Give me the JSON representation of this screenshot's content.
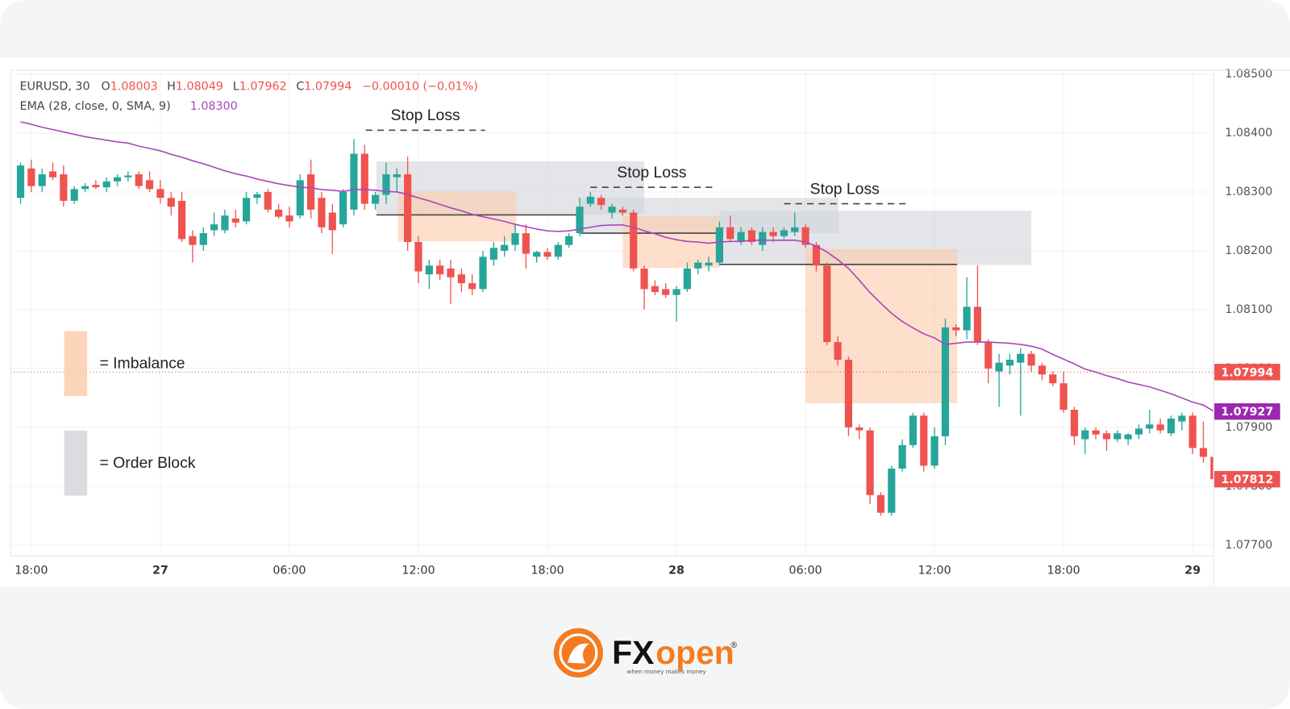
{
  "chart_data": {
    "type": "candlestick",
    "header": {
      "symbol": "EURUSD, 30",
      "fields": [
        {
          "key": "O",
          "value": "1.08003"
        },
        {
          "key": "H",
          "value": "1.08049"
        },
        {
          "key": "L",
          "value": "1.07962"
        },
        {
          "key": "C",
          "value": "1.07994"
        }
      ],
      "change": "−0.00010 (−0.01%)",
      "ema_label": "EMA (28, close, 0, SMA, 9)",
      "ema_value": "1.08300"
    },
    "up_color": "#26a69a",
    "down_color": "#ef5350",
    "categories": [
      null,
      "18:00",
      null,
      null,
      null,
      null,
      null,
      null,
      null,
      null,
      null,
      null,
      null,
      "27",
      null,
      null,
      null,
      null,
      null,
      null,
      null,
      null,
      null,
      null,
      null,
      "06:00",
      null,
      null,
      null,
      null,
      null,
      null,
      null,
      null,
      null,
      null,
      null,
      "12:00",
      null,
      null,
      null,
      null,
      null,
      null,
      null,
      null,
      null,
      null,
      null,
      "18:00",
      null,
      null,
      null,
      null,
      null,
      null,
      null,
      null,
      null,
      null,
      null,
      "28",
      null,
      null,
      null,
      null,
      null,
      null,
      null,
      null,
      null,
      null,
      null,
      "06:00",
      null,
      null,
      null,
      null,
      null,
      null,
      null,
      null,
      null,
      null,
      null,
      "12:00",
      null,
      null,
      null,
      null,
      null,
      null,
      null,
      null,
      null,
      null,
      null,
      "18:00",
      null,
      null,
      null,
      null,
      null,
      null,
      null,
      null,
      null,
      null,
      null,
      "29",
      null,
      null
    ],
    "open": [
      1.0829,
      1.0834,
      1.0831,
      1.08335,
      1.0833,
      1.08285,
      1.08305,
      1.08312,
      1.08308,
      1.08318,
      1.08325,
      1.0833,
      1.0832,
      1.08305,
      1.0829,
      1.08285,
      1.08225,
      1.0821,
      1.08235,
      1.08235,
      1.08255,
      1.0825,
      1.0829,
      1.083,
      1.0827,
      1.0826,
      1.0826,
      1.0833,
      1.0829,
      1.08265,
      1.08245,
      1.0827,
      1.08365,
      1.0828,
      1.08295,
      1.08325,
      1.0833,
      1.08215,
      1.0816,
      1.08175,
      1.0817,
      1.0816,
      1.08145,
      1.08135,
      1.08185,
      1.082,
      1.0821,
      1.0823,
      1.0819,
      1.08198,
      1.0819,
      1.0821,
      1.0823,
      1.0828,
      1.0829,
      1.08265,
      1.0827,
      1.08265,
      1.0817,
      1.0814,
      1.08135,
      1.08125,
      1.08135,
      1.0817,
      1.08175,
      1.0818,
      1.0824,
      1.08215,
      1.08235,
      1.0821,
      1.08232,
      1.08225,
      1.08232,
      1.0824,
      1.0821,
      1.08175,
      1.08045,
      1.08015,
      1.079,
      1.07895,
      1.07785,
      1.07755,
      1.0783,
      1.0787,
      1.0792,
      1.07835,
      1.07885,
      1.0807,
      1.08065,
      1.08105,
      1.08045,
      1.07995,
      1.08005,
      1.0801,
      1.08025,
      1.08005,
      1.0799,
      1.07975,
      1.0793,
      1.0788,
      1.07895,
      1.0789,
      1.0788,
      1.0788,
      1.07888,
      1.07898,
      1.07905,
      1.0789,
      1.0791,
      1.0792,
      1.07865,
      1.0785
    ],
    "high": [
      1.0835,
      1.08355,
      1.0834,
      1.0835,
      1.08345,
      1.0831,
      1.08315,
      1.0832,
      1.08325,
      1.0833,
      1.08335,
      1.08335,
      1.08335,
      1.0832,
      1.083,
      1.083,
      1.08235,
      1.0824,
      1.08265,
      1.0827,
      1.0827,
      1.083,
      1.083,
      1.08305,
      1.0828,
      1.08275,
      1.0833,
      1.08355,
      1.083,
      1.0828,
      1.08305,
      1.0839,
      1.0838,
      1.083,
      1.0835,
      1.0834,
      1.0836,
      1.08225,
      1.08185,
      1.08185,
      1.08185,
      1.0817,
      1.0816,
      1.082,
      1.08215,
      1.08225,
      1.08245,
      1.08245,
      1.082,
      1.08205,
      1.08215,
      1.0823,
      1.0829,
      1.083,
      1.08295,
      1.0828,
      1.08275,
      1.0827,
      1.08175,
      1.0815,
      1.08145,
      1.0814,
      1.0818,
      1.08185,
      1.0819,
      1.0825,
      1.0826,
      1.0824,
      1.0824,
      1.0824,
      1.0824,
      1.0824,
      1.08265,
      1.08245,
      1.08215,
      1.0818,
      1.08055,
      1.0802,
      1.07905,
      1.079,
      1.0779,
      1.07835,
      1.0788,
      1.07925,
      1.07925,
      1.079,
      1.08085,
      1.08075,
      1.08155,
      1.08175,
      1.0805,
      1.08025,
      1.08025,
      1.08035,
      1.0803,
      1.0801,
      1.07995,
      1.07995,
      1.07935,
      1.079,
      1.079,
      1.07895,
      1.07895,
      1.0789,
      1.07905,
      1.0793,
      1.07915,
      1.0792,
      1.07925,
      1.07925,
      1.0791,
      1.07855
    ],
    "low": [
      1.0828,
      1.083,
      1.083,
      1.0832,
      1.08275,
      1.0828,
      1.083,
      1.08305,
      1.083,
      1.0831,
      1.08318,
      1.08305,
      1.083,
      1.0828,
      1.0826,
      1.08215,
      1.0818,
      1.082,
      1.08225,
      1.0823,
      1.0824,
      1.08245,
      1.0828,
      1.08265,
      1.08255,
      1.0824,
      1.08255,
      1.08255,
      1.0823,
      1.08195,
      1.0824,
      1.0826,
      1.0827,
      1.0827,
      1.0828,
      1.083,
      1.082,
      1.08145,
      1.08135,
      1.0815,
      1.0811,
      1.0813,
      1.08125,
      1.0813,
      1.08175,
      1.0819,
      1.082,
      1.0817,
      1.0818,
      1.08185,
      1.08185,
      1.08205,
      1.08225,
      1.08275,
      1.0827,
      1.08255,
      1.0826,
      1.08165,
      1.081,
      1.08125,
      1.0812,
      1.0808,
      1.0813,
      1.0816,
      1.08165,
      1.08175,
      1.08215,
      1.0821,
      1.0821,
      1.082,
      1.08215,
      1.0822,
      1.08225,
      1.08205,
      1.08165,
      1.0804,
      1.08005,
      1.07885,
      1.0788,
      1.0777,
      1.0775,
      1.0775,
      1.07825,
      1.07865,
      1.07825,
      1.0783,
      1.0787,
      1.08055,
      1.0805,
      1.0804,
      1.07975,
      1.07935,
      1.0799,
      1.0792,
      1.07995,
      1.0798,
      1.0797,
      1.07925,
      1.0787,
      1.07855,
      1.0788,
      1.0786,
      1.07875,
      1.0787,
      1.0788,
      1.0789,
      1.0789,
      1.07885,
      1.07895,
      1.07855,
      1.0784,
      1.078
    ],
    "close": [
      1.08345,
      1.0831,
      1.0833,
      1.08325,
      1.08285,
      1.08305,
      1.0831,
      1.08308,
      1.08318,
      1.08325,
      1.08328,
      1.0831,
      1.08305,
      1.0829,
      1.08275,
      1.0822,
      1.0821,
      1.0823,
      1.08245,
      1.0826,
      1.08248,
      1.0829,
      1.08296,
      1.0827,
      1.08258,
      1.0825,
      1.0832,
      1.0827,
      1.0824,
      1.08235,
      1.083,
      1.08365,
      1.0828,
      1.08295,
      1.0833,
      1.0833,
      1.08215,
      1.08165,
      1.08175,
      1.0816,
      1.08155,
      1.08145,
      1.08135,
      1.0819,
      1.08205,
      1.0821,
      1.0823,
      1.08195,
      1.08198,
      1.0819,
      1.0821,
      1.08225,
      1.08275,
      1.08292,
      1.08278,
      1.08275,
      1.08265,
      1.0817,
      1.08135,
      1.0813,
      1.08125,
      1.08135,
      1.0817,
      1.0818,
      1.0818,
      1.0824,
      1.0822,
      1.08232,
      1.08215,
      1.08232,
      1.08225,
      1.08235,
      1.0824,
      1.0821,
      1.08175,
      1.08045,
      1.08015,
      1.079,
      1.07895,
      1.07785,
      1.07755,
      1.0783,
      1.0787,
      1.0792,
      1.07835,
      1.07885,
      1.0807,
      1.08065,
      1.08105,
      1.08045,
      1.08,
      1.0801,
      1.08015,
      1.08025,
      1.08005,
      1.0799,
      1.07975,
      1.0793,
      1.07885,
      1.07895,
      1.07888,
      1.0788,
      1.0789,
      1.07888,
      1.07898,
      1.07905,
      1.07895,
      1.07915,
      1.0792,
      1.07865,
      1.0785,
      1.07812
    ],
    "ema": {
      "color": "#ab47bc",
      "values": [
        1.08419,
        1.08415,
        1.0841,
        1.08406,
        1.08402,
        1.08398,
        1.08394,
        1.08391,
        1.08388,
        1.08385,
        1.08383,
        1.08378,
        1.08374,
        1.0837,
        1.08364,
        1.08359,
        1.08353,
        1.08348,
        1.08342,
        1.08336,
        1.08331,
        1.08327,
        1.08322,
        1.08318,
        1.08314,
        1.08311,
        1.08308,
        1.08307,
        1.08304,
        1.08303,
        1.08301,
        1.08304,
        1.08304,
        1.08303,
        1.08301,
        1.083,
        1.08296,
        1.0829,
        1.08285,
        1.08279,
        1.08273,
        1.08268,
        1.08262,
        1.08258,
        1.08254,
        1.0825,
        1.08245,
        1.08241,
        1.08237,
        1.08234,
        1.08233,
        1.08234,
        1.08237,
        1.0824,
        1.08243,
        1.08244,
        1.08244,
        1.0824,
        1.08234,
        1.08229,
        1.08223,
        1.08219,
        1.08216,
        1.08215,
        1.08213,
        1.08215,
        1.08216,
        1.08216,
        1.08218,
        1.08218,
        1.08218,
        1.08218,
        1.08218,
        1.08215,
        1.08208,
        1.08198,
        1.08185,
        1.0817,
        1.0815,
        1.08129,
        1.08111,
        1.08094,
        1.0808,
        1.08069,
        1.08059,
        1.08052,
        1.08041,
        1.08043,
        1.08045,
        1.08045,
        1.08045,
        1.08044,
        1.08043,
        1.08041,
        1.08038,
        1.08033,
        1.08024,
        1.08016,
        1.08008,
        1.07999,
        1.07994,
        1.07988,
        1.07983,
        1.07977,
        1.07973,
        1.07969,
        1.07963,
        1.07957,
        1.0795,
        1.07943,
        1.07938,
        1.07927
      ]
    },
    "ylim": [
      1.07682,
      1.08507
    ],
    "yticks": [
      {
        "value": 1.085,
        "label": "1.08500"
      },
      {
        "value": 1.084,
        "label": "1.08400"
      },
      {
        "value": 1.083,
        "label": "1.08300"
      },
      {
        "value": 1.082,
        "label": "1.08200"
      },
      {
        "value": 1.081,
        "label": "1.08100"
      },
      {
        "value": 1.08,
        "label": "1.08000"
      },
      {
        "value": 1.079,
        "label": "1.07900"
      },
      {
        "value": 1.078,
        "label": "1.07800"
      },
      {
        "value": 1.077,
        "label": "1.07700"
      }
    ],
    "grid": true,
    "price_markers": [
      {
        "value": 1.07994,
        "color": "#ef5350",
        "dotted_line": true
      },
      {
        "value": 1.07927,
        "color": "#9c27b0",
        "dotted_line": false
      },
      {
        "value": 1.07812,
        "color": "#ef5350",
        "dotted_line": false
      }
    ],
    "order_block": {
      "label": "= Order Block",
      "color": "#d1d3d8",
      "zones": [
        {
          "from": 33.1,
          "to": 58.0,
          "low": 1.08262,
          "high": 1.08352
        },
        {
          "from": 52.1,
          "to": 76.1,
          "low": 1.0823,
          "high": 1.0829
        },
        {
          "from": 65.0,
          "to": 94.0,
          "low": 1.08176,
          "high": 1.08268
        }
      ]
    },
    "imbalance": {
      "label": "= Imbalance",
      "color": "#fbc9a8",
      "zones": [
        {
          "from": 35.1,
          "to": 46.1,
          "low": 1.08216,
          "high": 1.08301
        },
        {
          "from": 56.0,
          "to": 65.0,
          "low": 1.08171,
          "high": 1.08259
        },
        {
          "from": 73.0,
          "to": 87.1,
          "low": 1.07941,
          "high": 1.08203
        }
      ]
    },
    "levels": [
      {
        "from": 33.1,
        "to": 52.1,
        "price": 1.08261
      },
      {
        "from": 52.1,
        "to": 65.0,
        "price": 1.0823
      },
      {
        "from": 65.0,
        "to": 87.1,
        "price": 1.08177
      }
    ],
    "stop_losses": [
      {
        "label": "Stop Loss",
        "price": 1.08405,
        "from": 32.1,
        "to": 43.2
      },
      {
        "label": "Stop Loss",
        "price": 1.08308,
        "from": 53.0,
        "to": 64.4
      },
      {
        "label": "Stop Loss",
        "price": 1.0828,
        "from": 71.0,
        "to": 82.3
      }
    ]
  },
  "logo": {
    "brand_fx": "FX",
    "brand_open": "open",
    "registered": "®",
    "tagline": "when money makes money"
  }
}
